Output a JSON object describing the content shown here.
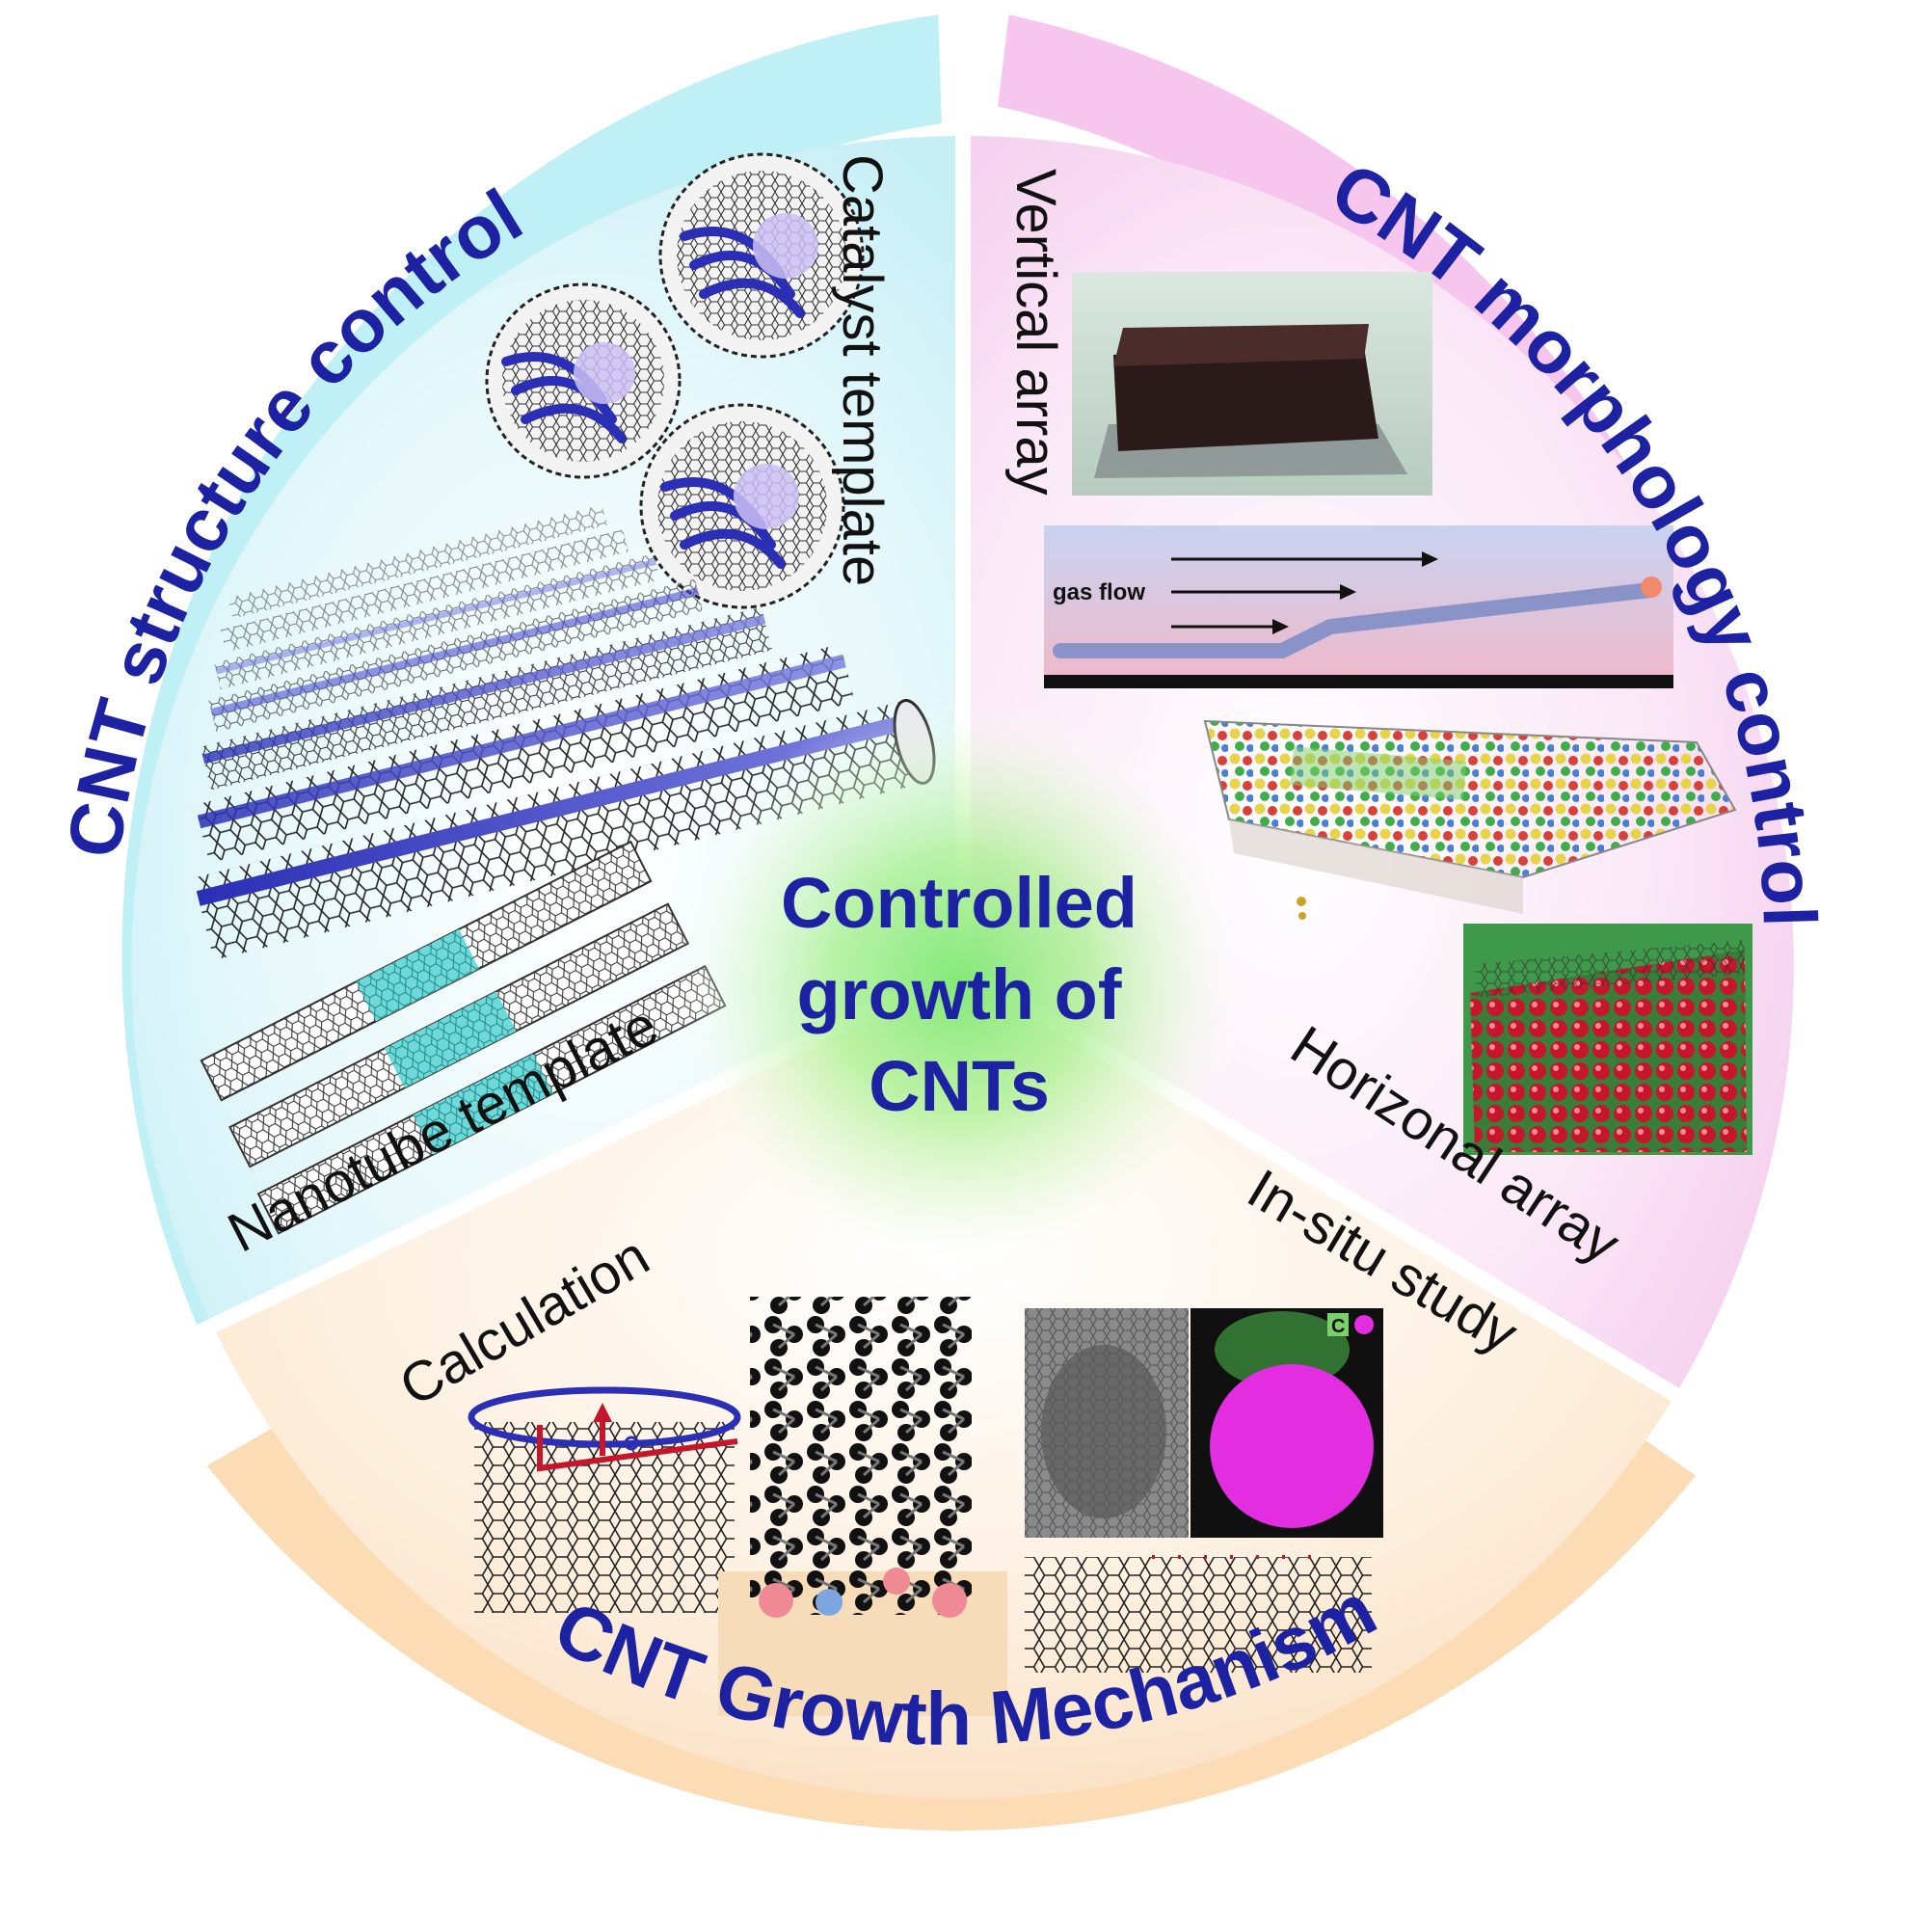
{
  "center": {
    "lines": [
      "Controlled",
      "growth of",
      "CNTs"
    ]
  },
  "sectors": {
    "structure": {
      "title": "CNT structure control",
      "labels": {
        "catalyst": "Catalyst template",
        "nanotube": "Nanotube template"
      },
      "band_color": "#bff0f5"
    },
    "morphology": {
      "title": "CNT morphology control",
      "labels": {
        "vertical": "Vertical array",
        "horizontal": "Horizonal array"
      },
      "inset_text": "gas flow",
      "band_color": "#f7c6ee"
    },
    "mechanism": {
      "title": "CNT Growth Mechanism",
      "labels": {
        "calculation": "Calculation",
        "insitu": "In-situ study"
      },
      "inset_text": "C",
      "band_color": "#fbdcb4"
    }
  },
  "colors": {
    "title_blue": "#1d22a3",
    "center_glow": "#9fef8a",
    "tube_blue": "#2b2fb5",
    "tube_cyan": "#55d6d6",
    "magenta": "#e22ee0",
    "crystal_red": "#c5162b"
  }
}
